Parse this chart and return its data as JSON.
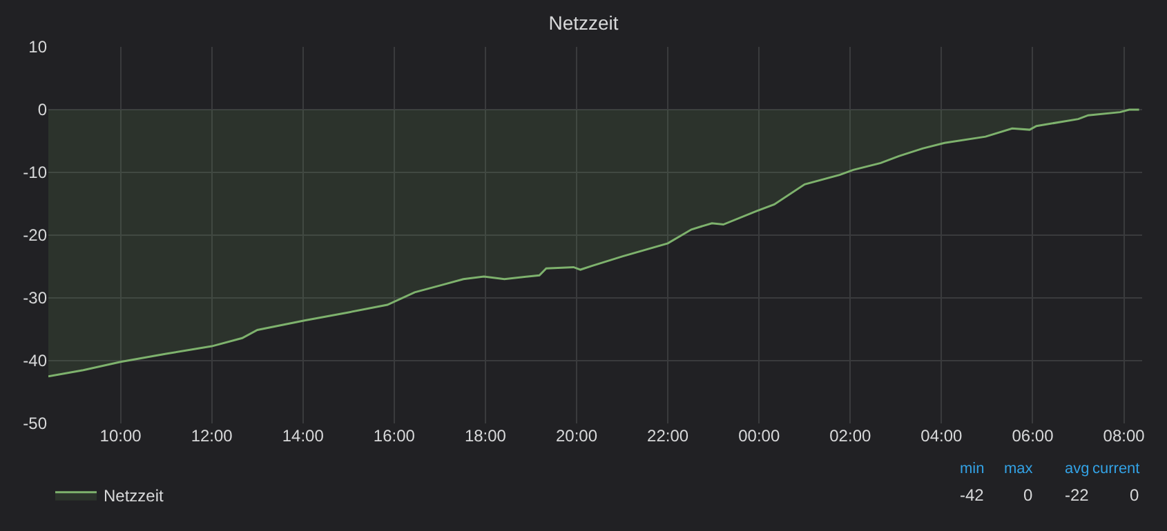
{
  "chart_data": {
    "type": "area",
    "title": "Netzzeit",
    "x": [
      "--01-01T08:25",
      "--01-01T09:11",
      "--01-01T10:00",
      "--01-01T11:00",
      "--01-01T12:00",
      "--01-01T12:40",
      "--01-01T13:00",
      "--01-01T14:02",
      "--01-01T15:00",
      "--01-01T15:51",
      "--01-01T16:27",
      "--01-01T17:04",
      "--01-01T17:31",
      "--01-01T17:58",
      "--01-01T18:25",
      "--01-01T19:11",
      "--01-01T19:20",
      "--01-01T19:56",
      "--01-01T20:05",
      "--01-01T20:20",
      "--01-01T21:00",
      "--01-01T22:00",
      "--01-01T22:31",
      "--01-01T22:58",
      "--01-01T23:13",
      "--01-01T23:56",
      "--01-02T00:20",
      "--01-02T01:00",
      "--01-02T01:46",
      "--01-02T02:04",
      "--01-02T02:40",
      "--01-02T03:04",
      "--01-02T03:35",
      "--01-02T04:04",
      "--01-02T04:58",
      "--01-02T05:33",
      "--01-02T05:56",
      "--01-02T06:05",
      "--01-02T07:00",
      "--01-02T07:13",
      "--01-02T07:55",
      "--01-02T08:07",
      "--01-02T08:20"
    ],
    "series": [
      {
        "name": "Netzzeit",
        "color": "#7eb26d",
        "values": [
          -42.5,
          -41.5,
          -40.2,
          -38.9,
          -37.7,
          -36.4,
          -35.1,
          -33.6,
          -32.3,
          -31.1,
          -29.1,
          -27.9,
          -27.0,
          -26.6,
          -27.0,
          -26.4,
          -25.3,
          -25.1,
          -25.5,
          -24.9,
          -23.4,
          -21.3,
          -19.1,
          -18.1,
          -18.3,
          -16.2,
          -15.1,
          -11.9,
          -10.4,
          -9.6,
          -8.5,
          -7.4,
          -6.2,
          -5.3,
          -4.3,
          -3.0,
          -3.2,
          -2.6,
          -1.5,
          -0.9,
          -0.4,
          0,
          0
        ]
      }
    ],
    "xlim": [
      "--01-01T08:25",
      "--01-02T08:24"
    ],
    "xticks": [
      {
        "value": "--01-01T10:00",
        "label": "10:00"
      },
      {
        "value": "--01-01T12:00",
        "label": "12:00"
      },
      {
        "value": "--01-01T14:00",
        "label": "14:00"
      },
      {
        "value": "--01-01T16:00",
        "label": "16:00"
      },
      {
        "value": "--01-01T18:00",
        "label": "18:00"
      },
      {
        "value": "--01-01T20:00",
        "label": "20:00"
      },
      {
        "value": "--01-01T22:00",
        "label": "22:00"
      },
      {
        "value": "--01-02T00:00",
        "label": "00:00"
      },
      {
        "value": "--01-02T02:00",
        "label": "02:00"
      },
      {
        "value": "--01-02T04:00",
        "label": "04:00"
      },
      {
        "value": "--01-02T06:00",
        "label": "06:00"
      },
      {
        "value": "--01-02T08:00",
        "label": "08:00"
      }
    ],
    "ylim": [
      -50,
      10
    ],
    "yticks": [
      -50,
      -40,
      -30,
      -20,
      -10,
      0,
      10
    ],
    "grid": true,
    "legend": "bottom left",
    "annotations": [
      "min",
      "max",
      "avg",
      "current",
      "-42",
      "0",
      "-22",
      "0"
    ]
  }
}
